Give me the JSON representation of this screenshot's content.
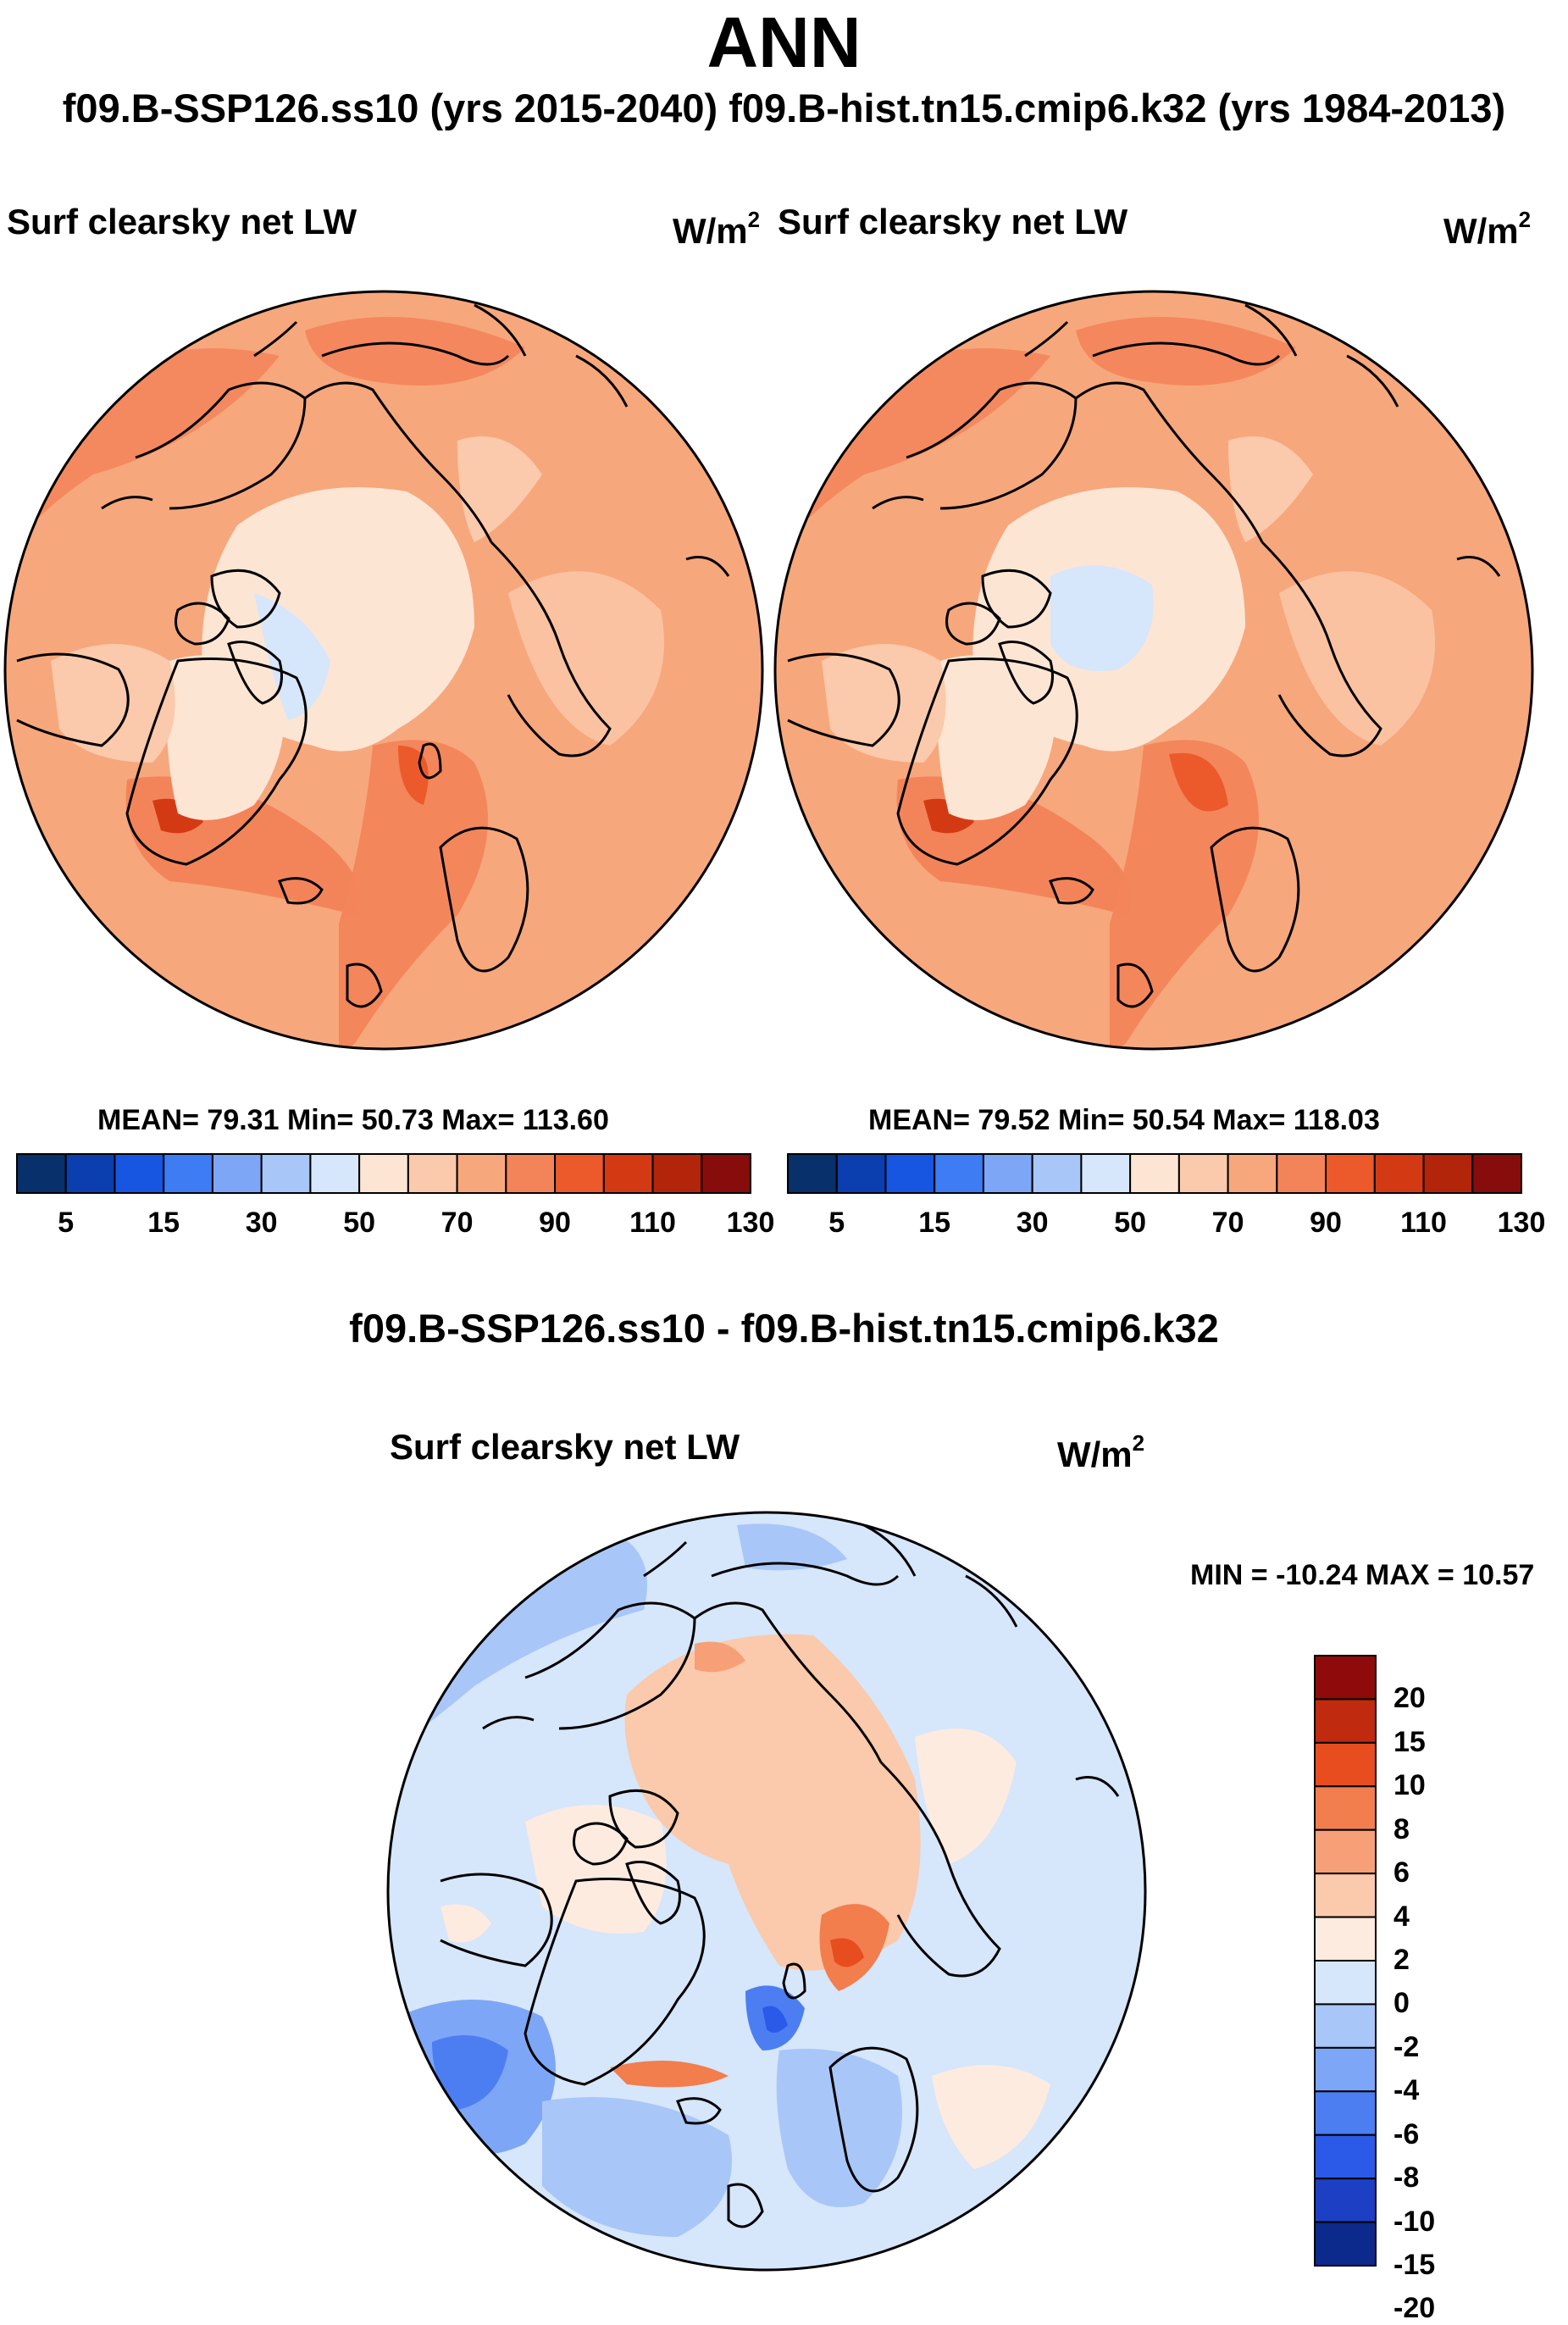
{
  "title": "ANN",
  "run_header": "f09.B-SSP126.ss10 (yrs 2015-2040)  f09.B-hist.tn15.cmip6.k32 (yrs 1984-2013)",
  "diff_header": "f09.B-SSP126.ss10 - f09.B-hist.tn15.cmip6.k32",
  "colors": {
    "abs_scale": [
      "#08306b",
      "#0b3fb0",
      "#1656e0",
      "#3d7cf2",
      "#7ea6f6",
      "#a9c6f8",
      "#d6e6fb",
      "#fde5d4",
      "#fbc9ab",
      "#f7a77c",
      "#f3845a",
      "#ec5a2c",
      "#d33a14",
      "#b3250b",
      "#870c0c"
    ],
    "diff_scale": [
      "#0b2a8c",
      "#1c3fc4",
      "#2b5ae8",
      "#4c7ef2",
      "#7ea6f6",
      "#a9c6f8",
      "#d6e6fb",
      "#fdebe0",
      "#fbc9ab",
      "#f7a077",
      "#f27e4d",
      "#e84d20",
      "#c02a0e",
      "#8f0b0b"
    ]
  },
  "panels": [
    {
      "title": "Surf clearsky net LW",
      "units": "W/m",
      "units_sup": "2",
      "stats": "MEAN=  79.31  Min=  50.73  Max= 113.60",
      "colorbar_ticks": [
        "5",
        "15",
        "30",
        "50",
        "70",
        "90",
        "110",
        "130"
      ]
    },
    {
      "title": "Surf clearsky net LW",
      "units": "W/m",
      "units_sup": "2",
      "stats": "MEAN=  79.52  Min=  50.54  Max= 118.03",
      "colorbar_ticks": [
        "5",
        "15",
        "30",
        "50",
        "70",
        "90",
        "110",
        "130"
      ]
    },
    {
      "title": "Surf clearsky net LW",
      "units": "W/m",
      "units_sup": "2",
      "minmax": "MIN = -10.24 MAX =  10.57",
      "colorbar_ticks": [
        "20",
        "15",
        "10",
        "8",
        "6",
        "4",
        "2",
        "0",
        "-2",
        "-4",
        "-6",
        "-8",
        "-10",
        "-15",
        "-20"
      ]
    }
  ],
  "chart_data": [
    {
      "type": "heatmap",
      "projection": "north-polar-stereographic",
      "title": "Surf clearsky net LW",
      "case": "f09.B-SSP126.ss10 (yrs 2015-2040)",
      "units": "W/m2",
      "mean": 79.31,
      "min": 50.73,
      "max": 113.6,
      "contour_levels": [
        5,
        10,
        15,
        20,
        30,
        40,
        50,
        60,
        70,
        80,
        90,
        100,
        110,
        120,
        130
      ]
    },
    {
      "type": "heatmap",
      "projection": "north-polar-stereographic",
      "title": "Surf clearsky net LW",
      "case": "f09.B-hist.tn15.cmip6.k32 (yrs 1984-2013)",
      "units": "W/m2",
      "mean": 79.52,
      "min": 50.54,
      "max": 118.03,
      "contour_levels": [
        5,
        10,
        15,
        20,
        30,
        40,
        50,
        60,
        70,
        80,
        90,
        100,
        110,
        120,
        130
      ]
    },
    {
      "type": "heatmap",
      "projection": "north-polar-stereographic",
      "title": "Surf clearsky net LW",
      "case": "f09.B-SSP126.ss10 - f09.B-hist.tn15.cmip6.k32",
      "units": "W/m2",
      "min": -10.24,
      "max": 10.57,
      "contour_levels": [
        -20,
        -15,
        -10,
        -8,
        -6,
        -4,
        -2,
        0,
        2,
        4,
        6,
        8,
        10,
        15,
        20
      ]
    }
  ]
}
